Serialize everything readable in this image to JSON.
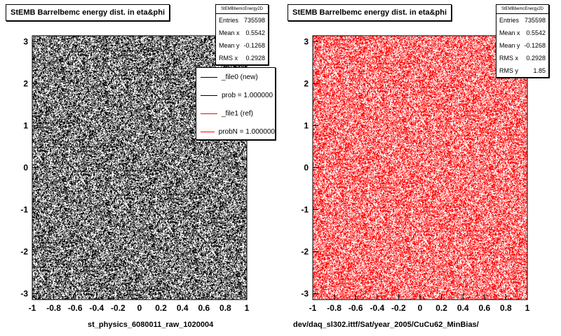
{
  "chart_data": [
    {
      "type": "scatter",
      "title": "StEMB Barrelbemc energy dist. in eta&phi",
      "series": [
        {
          "name": "_file0 (new)",
          "color": "#000000",
          "x_range": [
            -1,
            1
          ],
          "y_range": [
            -3.14,
            3.14
          ]
        }
      ],
      "xlim": [
        -1,
        1
      ],
      "ylim": [
        -3.14,
        3.14
      ],
      "xticks": [
        "-1",
        "-0.8",
        "-0.6",
        "-0.4",
        "-0.2",
        "0",
        "0.2",
        "0.4",
        "0.6",
        "0.8",
        "1"
      ],
      "yticks": [
        "-3",
        "-2",
        "-1",
        "0",
        "1",
        "2",
        "3"
      ],
      "stats": {
        "header": "StEMBbemcEnergy2D",
        "rows": [
          {
            "label": "Entries",
            "value": "735598"
          },
          {
            "label": "Mean x",
            "value": "0.5542"
          },
          {
            "label": "Mean y",
            "value": "-0.1268"
          },
          {
            "label": "RMS x",
            "value": "0.2928"
          }
        ]
      },
      "legend": {
        "placement": "top-right",
        "items": [
          {
            "label": "_file0 (new)",
            "color": "#000000"
          },
          {
            "label": "prob = 1.000000",
            "color": "#000000"
          },
          {
            "label": "_file1 (ref)",
            "color": "#ff0000"
          },
          {
            "label": "probN = 1.000000",
            "color": "#ff0000"
          }
        ]
      },
      "footer": "st_physics_6080011_raw_1020004"
    },
    {
      "type": "scatter",
      "title": "StEMB Barrelbemc energy dist. in eta&phi",
      "series": [
        {
          "name": "_file1 (ref)",
          "color": "#ff0000",
          "x_range": [
            -1,
            1
          ],
          "y_range": [
            -3.14,
            3.14
          ]
        }
      ],
      "xlim": [
        -1,
        1
      ],
      "ylim": [
        -3.14,
        3.14
      ],
      "xticks": [
        "-1",
        "-0.8",
        "-0.6",
        "-0.4",
        "-0.2",
        "0",
        "0.2",
        "0.4",
        "0.6",
        "0.8",
        "1"
      ],
      "yticks": [
        "-3",
        "-2",
        "-1",
        "0",
        "1",
        "2",
        "3"
      ],
      "stats": {
        "header": "StEMBbemcEnergy2D",
        "rows": [
          {
            "label": "Entries",
            "value": "735598"
          },
          {
            "label": "Mean x",
            "value": "0.5542"
          },
          {
            "label": "Mean y",
            "value": "-0.1268"
          },
          {
            "label": "RMS x",
            "value": "0.2928"
          },
          {
            "label": "RMS y",
            "value": "1.85"
          }
        ]
      },
      "footer": "dev/daq_sl302.ittf/Sat/year_2005/CuCu62_MinBias/"
    }
  ]
}
